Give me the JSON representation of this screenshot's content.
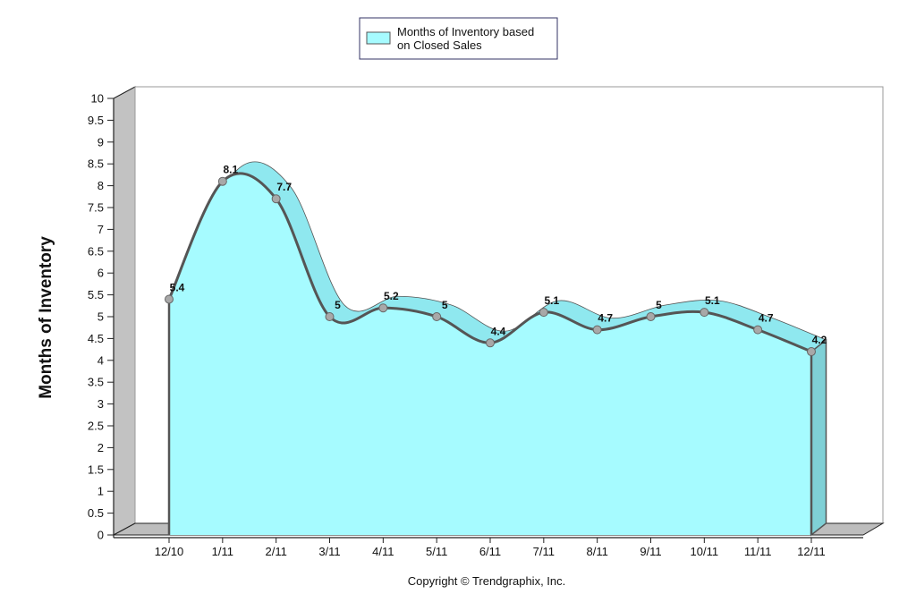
{
  "chart_data": {
    "type": "area",
    "ylabel": "Months of Inventory",
    "ylim": [
      0,
      10
    ],
    "ytick_step": 0.5,
    "categories": [
      "12/10",
      "1/11",
      "2/11",
      "3/11",
      "4/11",
      "5/11",
      "6/11",
      "7/11",
      "8/11",
      "9/11",
      "10/11",
      "11/11",
      "12/11"
    ],
    "series": [
      {
        "name": "Months of Inventory based on Closed Sales",
        "values": [
          5.4,
          8.1,
          7.7,
          5,
          5.2,
          5,
          4.4,
          5.1,
          4.7,
          5,
          5.1,
          4.7,
          4.2
        ],
        "labels": [
          "5.4",
          "8.1",
          "7.7",
          "5",
          "5.2",
          "5",
          "4.4",
          "5.1",
          "4.7",
          "5",
          "5.1",
          "4.7",
          "4.2"
        ]
      }
    ],
    "legend": {
      "position": "top-center",
      "line1": "Months of Inventory based",
      "line2": "on Closed Sales"
    },
    "grid": false,
    "three_d": true
  },
  "footer": "Copyright © Trendgraphix, Inc.",
  "colors": {
    "area_fill": "#a6fbff",
    "area_top": "#8fe8ef",
    "line": "#555555",
    "marker": "#a8a8a8",
    "wall_side": "#c2c2c2",
    "floor": "#bdbdbd",
    "axis": "#222222"
  }
}
